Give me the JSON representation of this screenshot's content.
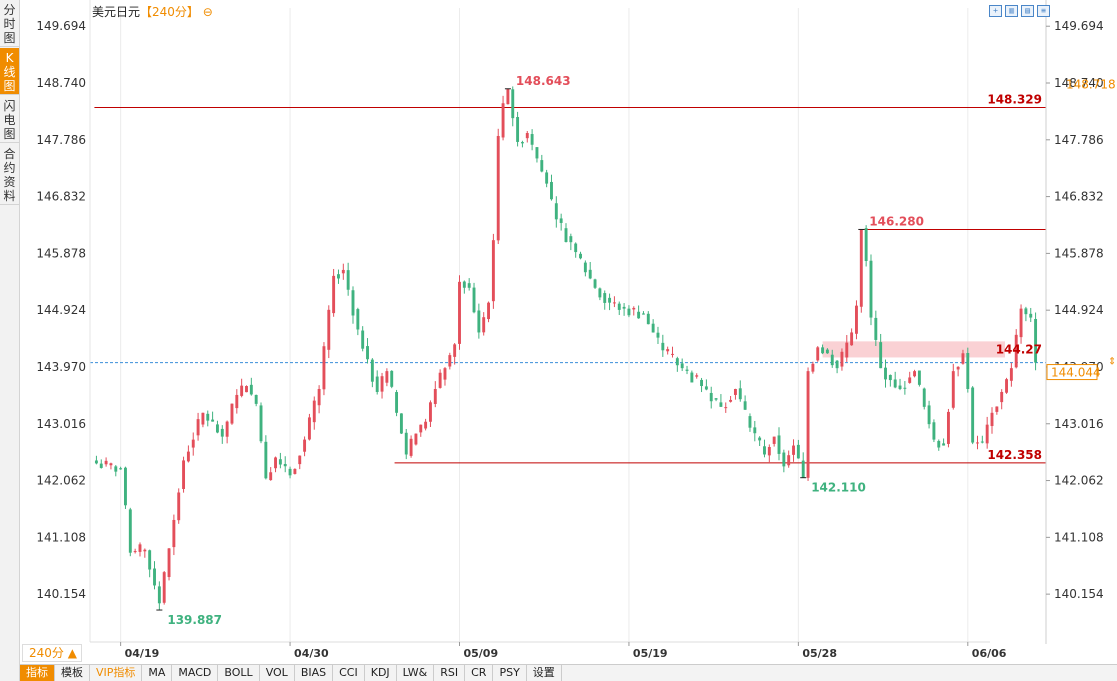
{
  "header": {
    "title": "美元日元",
    "period_tag": "【240分】"
  },
  "left_tabs": [
    {
      "label": "分\n时\n图",
      "active": false
    },
    {
      "label": "K\n线\n图",
      "active": true
    },
    {
      "label": "闪\n电\n图",
      "active": false
    },
    {
      "label": "合\n约\n资\n料",
      "active": false
    }
  ],
  "toolbar": {
    "icons": [
      "crosshair-icon",
      "zoom-in-icon",
      "zoom-out-icon",
      "settings-icon"
    ]
  },
  "period_button": "240分 ▲",
  "indicator_bar": [
    {
      "label": "指标",
      "active": true,
      "vip": false
    },
    {
      "label": "模板",
      "active": false,
      "vip": false
    },
    {
      "label": "VIP指标",
      "active": false,
      "vip": true
    },
    {
      "label": "MA",
      "active": false,
      "vip": false
    },
    {
      "label": "MACD",
      "active": false,
      "vip": false
    },
    {
      "label": "BOLL",
      "active": false,
      "vip": false
    },
    {
      "label": "VOL",
      "active": false,
      "vip": false
    },
    {
      "label": "BIAS",
      "active": false,
      "vip": false
    },
    {
      "label": "CCI",
      "active": false,
      "vip": false
    },
    {
      "label": "KDJ",
      "active": false,
      "vip": false
    },
    {
      "label": "LW&",
      "active": false,
      "vip": false
    },
    {
      "label": "RSI",
      "active": false,
      "vip": false
    },
    {
      "label": "CR",
      "active": false,
      "vip": false
    },
    {
      "label": "PSY",
      "active": false,
      "vip": false
    },
    {
      "label": "设置",
      "active": false,
      "vip": false
    }
  ],
  "colors": {
    "up": "#e34e5a",
    "down": "#3fb27f",
    "level_line": "#c00000",
    "current_price": "#3a8fd9",
    "accent": "#f08c00",
    "zone": "#f9c9cc"
  },
  "chart_data": {
    "type": "candlestick",
    "title": "美元日元",
    "period": "240分",
    "y_ticks": [
      149.694,
      148.74,
      147.786,
      146.832,
      145.878,
      144.924,
      143.97,
      143.016,
      142.062,
      141.108,
      140.154
    ],
    "ylim": [
      139.35,
      150.0
    ],
    "x_ticks": [
      {
        "label": "04/19",
        "index": 5
      },
      {
        "label": "04/30",
        "index": 40
      },
      {
        "label": "05/09",
        "index": 75
      },
      {
        "label": "05/19",
        "index": 110
      },
      {
        "label": "05/28",
        "index": 145
      },
      {
        "label": "06/06",
        "index": 180
      }
    ],
    "candle_count": 195,
    "path": [
      [
        0,
        142.35
      ],
      [
        5,
        142.25
      ],
      [
        7,
        140.85
      ],
      [
        10,
        140.9
      ],
      [
        12,
        140.3
      ],
      [
        13,
        140.0
      ],
      [
        16,
        141.4
      ],
      [
        18,
        142.4
      ],
      [
        22,
        143.2
      ],
      [
        26,
        142.8
      ],
      [
        29,
        143.5
      ],
      [
        31,
        143.65
      ],
      [
        33,
        143.35
      ],
      [
        35,
        142.1
      ],
      [
        37,
        142.45
      ],
      [
        40,
        142.15
      ],
      [
        43,
        142.75
      ],
      [
        46,
        143.6
      ],
      [
        49,
        145.5
      ],
      [
        51,
        145.6
      ],
      [
        54,
        144.6
      ],
      [
        56,
        144.1
      ],
      [
        58,
        143.55
      ],
      [
        60,
        143.9
      ],
      [
        62,
        143.2
      ],
      [
        64,
        142.5
      ],
      [
        66,
        142.85
      ],
      [
        68,
        143.05
      ],
      [
        70,
        143.6
      ],
      [
        72,
        143.95
      ],
      [
        74,
        144.35
      ],
      [
        75,
        145.4
      ],
      [
        77,
        145.3
      ],
      [
        79,
        144.55
      ],
      [
        81,
        145.05
      ],
      [
        82,
        146.1
      ],
      [
        83,
        147.85
      ],
      [
        84,
        148.4
      ],
      [
        85,
        148.643
      ],
      [
        86,
        148.15
      ],
      [
        87,
        147.75
      ],
      [
        89,
        147.9
      ],
      [
        93,
        147.05
      ],
      [
        95,
        146.45
      ],
      [
        99,
        145.9
      ],
      [
        103,
        145.3
      ],
      [
        106,
        145.05
      ],
      [
        109,
        144.95
      ],
      [
        113,
        144.85
      ],
      [
        117,
        144.25
      ],
      [
        121,
        143.95
      ],
      [
        125,
        143.65
      ],
      [
        129,
        143.3
      ],
      [
        132,
        143.6
      ],
      [
        135,
        142.95
      ],
      [
        138,
        142.5
      ],
      [
        140,
        142.8
      ],
      [
        142,
        142.3
      ],
      [
        144,
        142.65
      ],
      [
        146,
        142.11
      ],
      [
        147,
        143.9
      ],
      [
        149,
        144.3
      ],
      [
        151,
        144.2
      ],
      [
        153,
        143.95
      ],
      [
        156,
        144.55
      ],
      [
        157,
        145.0
      ],
      [
        158,
        146.28
      ],
      [
        159,
        145.75
      ],
      [
        160,
        144.8
      ],
      [
        162,
        143.95
      ],
      [
        164,
        143.75
      ],
      [
        166,
        143.6
      ],
      [
        169,
        143.9
      ],
      [
        171,
        143.3
      ],
      [
        173,
        142.75
      ],
      [
        175,
        142.65
      ],
      [
        177,
        143.9
      ],
      [
        179,
        144.2
      ],
      [
        180,
        143.6
      ],
      [
        181,
        142.7
      ],
      [
        183,
        142.7
      ],
      [
        185,
        143.2
      ],
      [
        187,
        143.55
      ],
      [
        189,
        143.95
      ],
      [
        191,
        144.95
      ],
      [
        193,
        144.8
      ],
      [
        194,
        144.044
      ]
    ],
    "annotations": [
      {
        "type": "high",
        "label": "148.643",
        "index": 85,
        "value": 148.643
      },
      {
        "type": "low",
        "label": "139.887",
        "index": 13,
        "value": 139.887
      },
      {
        "type": "high",
        "label": "146.280",
        "index": 158,
        "value": 146.28
      },
      {
        "type": "low",
        "label": "142.110",
        "index": 146,
        "value": 142.11
      }
    ],
    "levels": [
      {
        "label": "148.329",
        "value": 148.329,
        "from_index": 0,
        "to_index": 194
      },
      {
        "label": "146.280",
        "value": 146.28,
        "from_index": 158,
        "to_index": 194,
        "hide_label": true
      },
      {
        "label": "142.358",
        "value": 142.358,
        "from_index": 62,
        "to_index": 194
      }
    ],
    "zone": {
      "label": "144.27",
      "top": 144.4,
      "bottom": 144.13,
      "from_index": 150,
      "to_index": 194
    },
    "right_extra_labels": [
      {
        "label": "148.718",
        "value": 148.718,
        "color": "#f08c00"
      }
    ],
    "current_price": {
      "label": "144.044",
      "value": 144.044
    }
  }
}
